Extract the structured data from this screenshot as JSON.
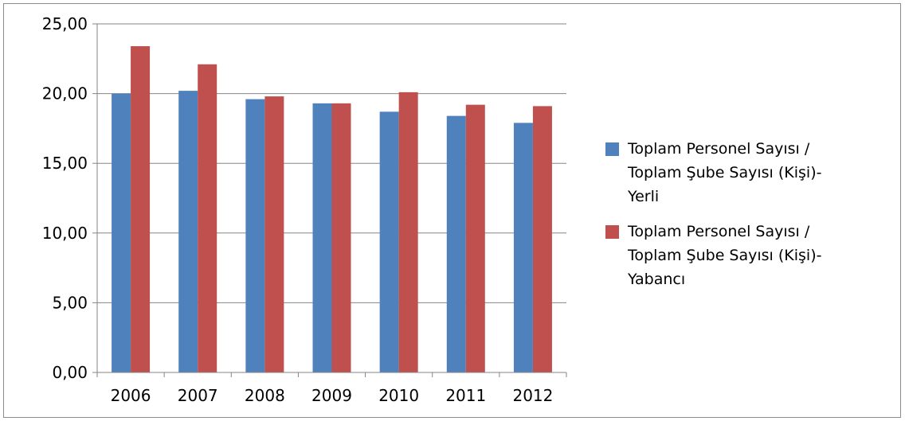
{
  "chart_data": {
    "type": "bar",
    "title": "",
    "xlabel": "",
    "ylabel": "",
    "categories": [
      "2006",
      "2007",
      "2008",
      "2009",
      "2010",
      "2011",
      "2012"
    ],
    "ylim": [
      0,
      25
    ],
    "yticks": [
      "0,00",
      "5,00",
      "10,00",
      "15,00",
      "20,00",
      "25,00"
    ],
    "grid": true,
    "legend_position": "right",
    "series": [
      {
        "name": "Toplam Personel Sayısı / Toplam Şube Sayısı (Kişi)-Yerli",
        "color": "#4f81bd",
        "values": [
          20.0,
          20.2,
          19.6,
          19.3,
          18.7,
          18.4,
          17.9
        ]
      },
      {
        "name": "Toplam Personel Sayısı / Toplam Şube Sayısı (Kişi)-Yabancı",
        "color": "#c0504d",
        "values": [
          23.4,
          22.1,
          19.8,
          19.3,
          20.1,
          19.2,
          19.1
        ]
      }
    ]
  },
  "legend": {
    "items": [
      {
        "label": "Toplam Personel Sayısı /\nToplam Şube Sayısı (Kişi)-\nYerli"
      },
      {
        "label": "Toplam Personel Sayısı /\nToplam Şube Sayısı (Kişi)-\nYabancı"
      }
    ]
  }
}
